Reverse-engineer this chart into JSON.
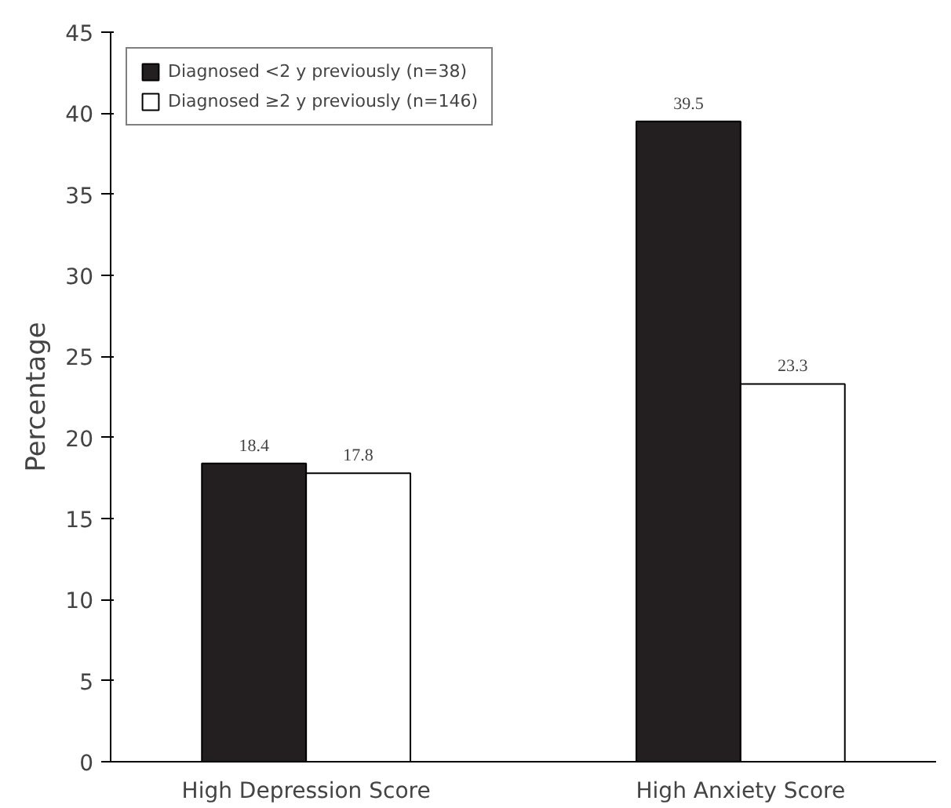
{
  "chart_data": {
    "type": "bar",
    "ylabel": "Percentage",
    "categories": [
      "High Depression Score",
      "High Anxiety Score"
    ],
    "series": [
      {
        "name": "Diagnosed <2 y previously (n=38)",
        "color": "#231f20",
        "values": [
          18.4,
          39.5
        ]
      },
      {
        "name": "Diagnosed ≥2 y previously (n=146)",
        "color": "#ffffff",
        "values": [
          17.8,
          23.3
        ]
      }
    ],
    "ylim": [
      0,
      45
    ],
    "yticks": [
      0,
      5,
      10,
      15,
      20,
      25,
      30,
      35,
      40,
      45
    ],
    "data_labels": true,
    "grid": false,
    "legend": "top left"
  }
}
